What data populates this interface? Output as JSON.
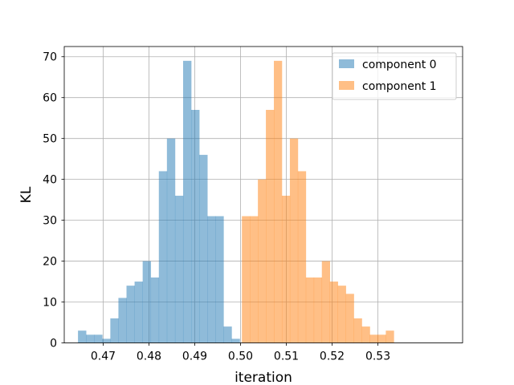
{
  "chart_data": {
    "type": "bar",
    "xlabel": "iteration",
    "ylabel": "KL",
    "xlim": [
      0.4615,
      0.5485
    ],
    "ylim": [
      0,
      72.5
    ],
    "xticks": [
      0.47,
      0.48,
      0.49,
      0.5,
      0.51,
      0.52,
      0.53
    ],
    "xtick_labels": [
      "0.47",
      "0.48",
      "0.49",
      "0.50",
      "0.51",
      "0.52",
      "0.53"
    ],
    "yticks": [
      0,
      10,
      20,
      30,
      40,
      50,
      60,
      70
    ],
    "ytick_labels": [
      "0",
      "10",
      "20",
      "30",
      "40",
      "50",
      "60",
      "70"
    ],
    "grid": true,
    "legend_position": "top-right",
    "series": [
      {
        "name": "component 0",
        "color": "#1f77b4",
        "alpha": 0.5,
        "bin_start": 0.4645,
        "bin_width": 0.001766,
        "values": [
          3,
          2,
          2,
          1,
          6,
          11,
          14,
          15,
          20,
          16,
          42,
          50,
          36,
          69,
          57,
          46,
          31,
          31,
          4,
          1
        ]
      },
      {
        "name": "component 1",
        "color": "#ff7f0e",
        "alpha": 0.5,
        "bin_start": 0.5003,
        "bin_width": 0.001746,
        "values": [
          31,
          31,
          40,
          57,
          69,
          36,
          50,
          42,
          16,
          16,
          20,
          15,
          14,
          12,
          6,
          4,
          2,
          2,
          3
        ]
      }
    ],
    "overlap_color": "#c39964"
  }
}
